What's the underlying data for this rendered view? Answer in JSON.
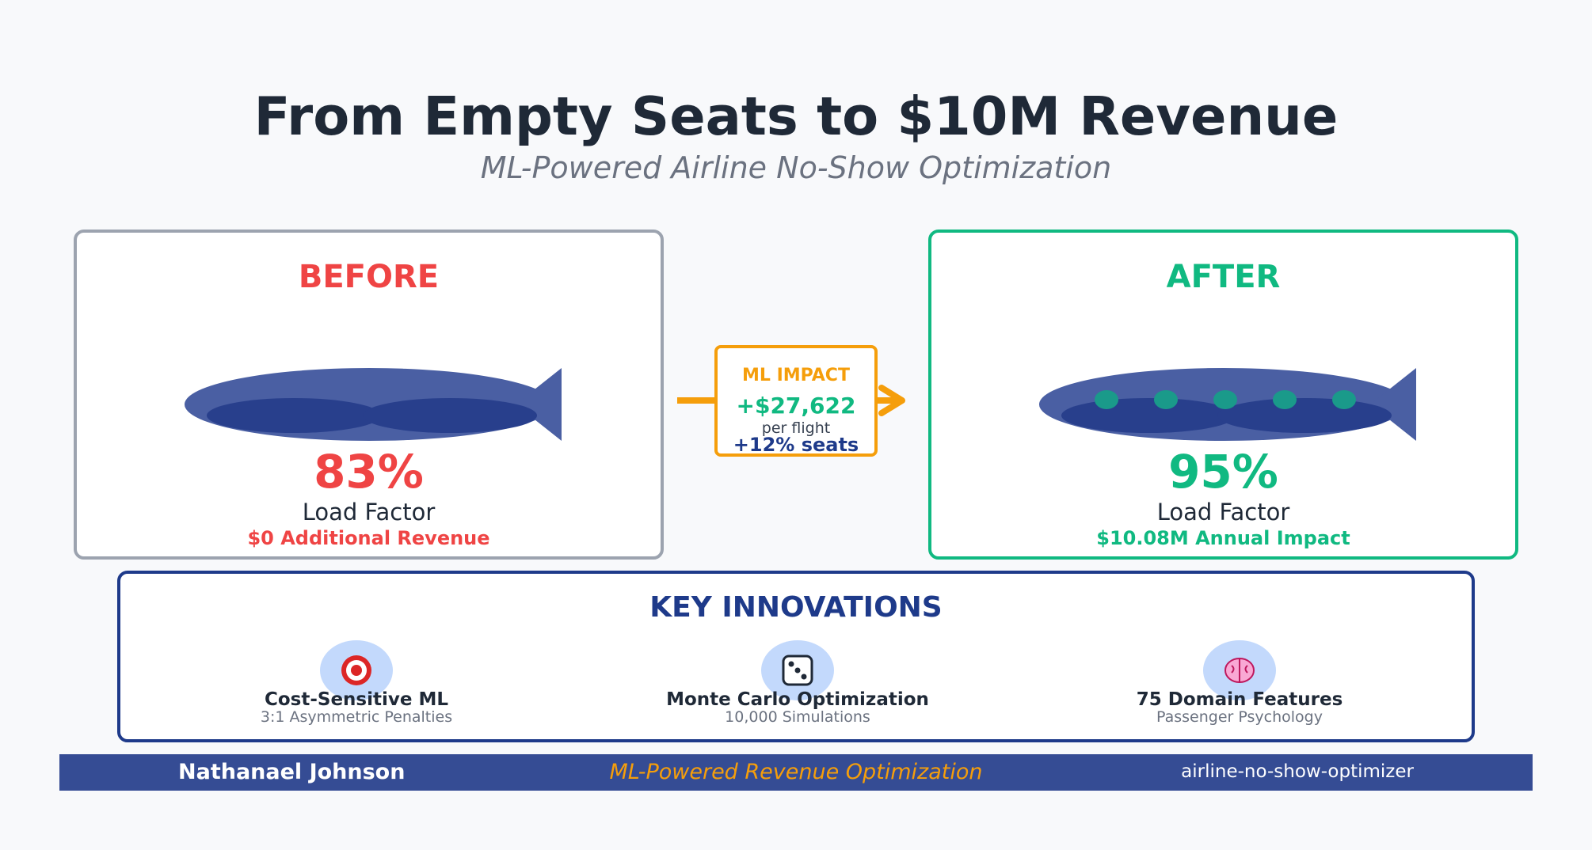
{
  "header": {
    "title": "From Empty Seats to $10M Revenue",
    "subtitle": "ML-Powered Airline No-Show Optimization"
  },
  "before": {
    "heading": "BEFORE",
    "load_factor_pct": "83%",
    "load_factor_label": "Load Factor",
    "revenue_text": "$0 Additional Revenue",
    "accent_color": "#ef4444",
    "border_color": "#9ca3af"
  },
  "after": {
    "heading": "AFTER",
    "load_factor_pct": "95%",
    "load_factor_label": "Load Factor",
    "revenue_text": "$10.08M Annual Impact",
    "accent_color": "#10b981",
    "border_color": "#10b981",
    "filled_seat_count": 5
  },
  "impact": {
    "label": "ML IMPACT",
    "value": "+$27,622",
    "unit": "per flight",
    "seats": "+12% seats",
    "color": "#f59e0b"
  },
  "innovations": {
    "title": "KEY INNOVATIONS",
    "items": [
      {
        "icon": "target-icon",
        "name": "Cost-Sensitive ML",
        "desc": "3:1 Asymmetric Penalties"
      },
      {
        "icon": "dice-icon",
        "name": "Monte Carlo Optimization",
        "desc": "10,000 Simulations"
      },
      {
        "icon": "brain-icon",
        "name": "75 Domain Features",
        "desc": "Passenger Psychology"
      }
    ]
  },
  "footer": {
    "author": "Nathanael Johnson",
    "tagline": "ML-Powered Revenue Optimization",
    "repo": "airline-no-show-optimizer"
  }
}
